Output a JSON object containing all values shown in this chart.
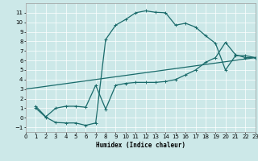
{
  "bg_color": "#cce8e8",
  "grid_color": "#ffffff",
  "line_color": "#1a6b6b",
  "xlabel": "Humidex (Indice chaleur)",
  "xlim": [
    0,
    23
  ],
  "ylim": [
    -1.5,
    12
  ],
  "xticks": [
    0,
    1,
    2,
    3,
    4,
    5,
    6,
    7,
    8,
    9,
    10,
    11,
    12,
    13,
    14,
    15,
    16,
    17,
    18,
    19,
    20,
    21,
    22,
    23
  ],
  "yticks": [
    -1,
    0,
    1,
    2,
    3,
    4,
    5,
    6,
    7,
    8,
    9,
    10,
    11
  ],
  "line1_x": [
    1,
    2,
    3,
    4,
    5,
    6,
    7,
    8,
    9,
    10,
    11,
    12,
    13,
    14,
    15,
    16,
    17,
    18,
    19,
    20,
    21,
    22,
    23
  ],
  "line1_y": [
    1.0,
    0.05,
    -0.5,
    -0.55,
    -0.55,
    -0.8,
    -0.55,
    8.2,
    9.7,
    10.3,
    11.0,
    11.2,
    11.05,
    11.0,
    9.7,
    9.9,
    9.5,
    8.6,
    7.8,
    5.0,
    6.5,
    6.5,
    6.3
  ],
  "line2_x": [
    1,
    2,
    3,
    4,
    5,
    6,
    7,
    8,
    9,
    10,
    11,
    12,
    13,
    14,
    15,
    16,
    17,
    18,
    19,
    20,
    21,
    22,
    23
  ],
  "line2_y": [
    1.2,
    0.1,
    1.0,
    1.2,
    1.2,
    1.1,
    3.4,
    0.9,
    3.4,
    3.6,
    3.7,
    3.7,
    3.7,
    3.8,
    4.0,
    4.5,
    5.0,
    5.8,
    6.3,
    7.9,
    6.6,
    6.3,
    6.3
  ],
  "line3_x": [
    0,
    23
  ],
  "line3_y": [
    3.0,
    6.3
  ],
  "tick_fontsize": 5,
  "xlabel_fontsize": 5.5,
  "marker_size": 2.5,
  "linewidth": 0.9
}
